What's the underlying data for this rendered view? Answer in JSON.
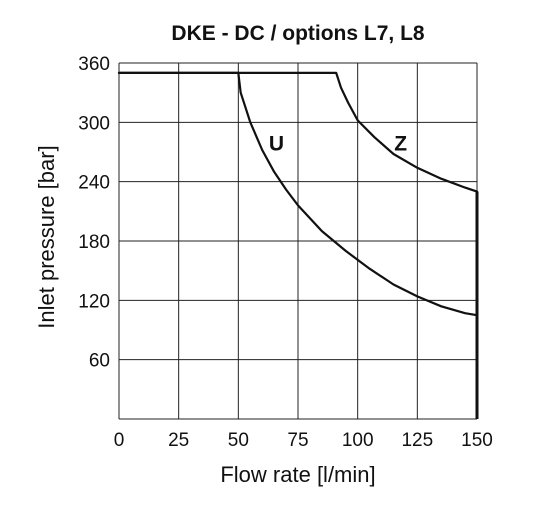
{
  "chart_data": {
    "type": "line",
    "title": "DKE - DC / options L7, L8",
    "xlabel": "Flow rate [l/min]",
    "ylabel": "Inlet pressure [bar]",
    "xlim": [
      0,
      150
    ],
    "ylim": [
      0,
      360
    ],
    "x_ticks": [
      "0",
      "25",
      "50",
      "75",
      "100",
      "125",
      "150"
    ],
    "y_ticks": [
      "60",
      "120",
      "180",
      "240",
      "300",
      "360"
    ],
    "grid": true,
    "series": [
      {
        "name": "U",
        "color": "#111111",
        "points": [
          [
            0,
            350
          ],
          [
            50,
            350
          ],
          [
            51,
            330
          ],
          [
            55,
            300
          ],
          [
            60,
            272
          ],
          [
            65,
            250
          ],
          [
            70,
            232
          ],
          [
            75,
            216
          ],
          [
            85,
            190
          ],
          [
            95,
            170
          ],
          [
            105,
            152
          ],
          [
            115,
            136
          ],
          [
            125,
            124
          ],
          [
            135,
            114
          ],
          [
            145,
            107
          ],
          [
            150,
            105
          ]
        ]
      },
      {
        "name": "Z",
        "color": "#111111",
        "points": [
          [
            0,
            350
          ],
          [
            91,
            350
          ],
          [
            93,
            335
          ],
          [
            96,
            320
          ],
          [
            100,
            302
          ],
          [
            107,
            285
          ],
          [
            115,
            268
          ],
          [
            125,
            254
          ],
          [
            135,
            243
          ],
          [
            145,
            234
          ],
          [
            150,
            230
          ]
        ]
      }
    ],
    "limit_line": {
      "x": 150,
      "from": 0,
      "to": 230
    }
  }
}
